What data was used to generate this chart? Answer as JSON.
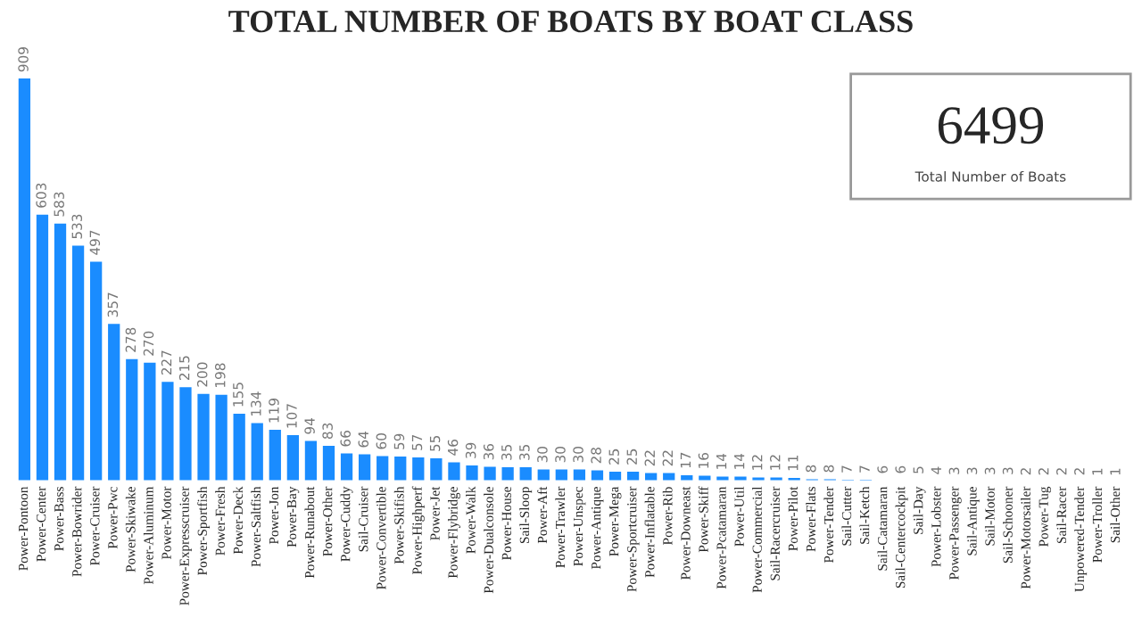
{
  "chart_data": [
    {
      "type": "bar",
      "title": "TOTAL NUMBER OF BOATS BY BOAT CLASS",
      "categories": [
        "Power-Pontoon",
        "Power-Center",
        "Power-Bass",
        "Power-Bowrider",
        "Power-Cruiser",
        "Power-Pwc",
        "Power-Skiwake",
        "Power-Aluminum",
        "Power-Motor",
        "Power-Expresscruiser",
        "Power-Sportfish",
        "Power-Fresh",
        "Power-Deck",
        "Power-Saltfish",
        "Power-Jon",
        "Power-Bay",
        "Power-Runabout",
        "Power-Other",
        "Power-Cuddy",
        "Sail-Cruiser",
        "Power-Convertible",
        "Power-Skifish",
        "Power-Highperf",
        "Power-Jet",
        "Power-Flybridge",
        "Power-Walk",
        "Power-Dualconsole",
        "Power-House",
        "Sail-Sloop",
        "Power-Aft",
        "Power-Trawler",
        "Power-Unspec",
        "Power-Antique",
        "Power-Mega",
        "Power-Sportcruiser",
        "Power-Inflatable",
        "Power-Rib",
        "Power-Downeast",
        "Power-Skiff",
        "Power-Pcatamaran",
        "Power-Util",
        "Power-Commercial",
        "Sail-Racercruiser",
        "Power-Pilot",
        "Power-Flats",
        "Power-Tender",
        "Sail-Cutter",
        "Sail-Ketch",
        "Sail-Catamaran",
        "Sail-Centercockpit",
        "Sail-Day",
        "Power-Lobster",
        "Power-Passenger",
        "Sail-Antique",
        "Sail-Motor",
        "Sail-Schooner",
        "Power-Motorsailer",
        "Power-Tug",
        "Sail-Racer",
        "Unpowered-Tender",
        "Power-Troller",
        "Sail-Other"
      ],
      "values": [
        909,
        603,
        583,
        533,
        497,
        357,
        278,
        270,
        227,
        215,
        200,
        198,
        155,
        134,
        119,
        107,
        94,
        83,
        66,
        64,
        60,
        59,
        57,
        55,
        46,
        39,
        36,
        35,
        35,
        30,
        30,
        30,
        28,
        25,
        25,
        22,
        22,
        17,
        16,
        14,
        14,
        12,
        12,
        11,
        8,
        8,
        7,
        7,
        6,
        6,
        5,
        4,
        3,
        3,
        3,
        3,
        2,
        2,
        2,
        2,
        1,
        1
      ],
      "color": "#1a8cff",
      "data_labels": true
    },
    {
      "type": "other",
      "title": "6499",
      "subtitle": "Total Number of Boats"
    }
  ]
}
